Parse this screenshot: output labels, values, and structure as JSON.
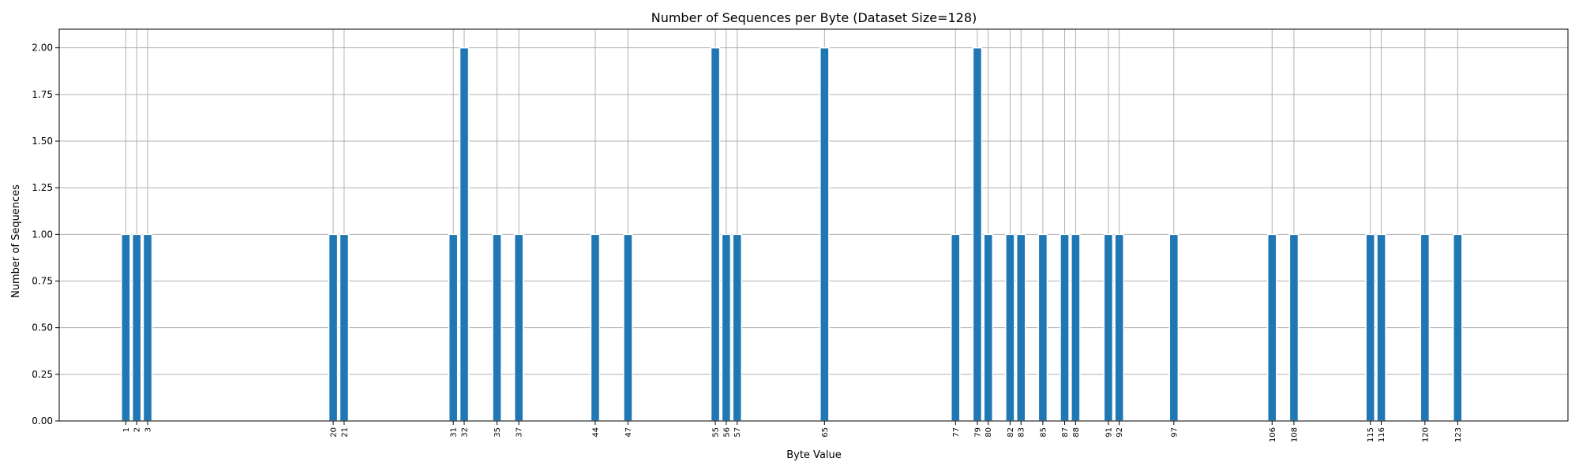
{
  "chart_data": {
    "type": "bar",
    "title": "Number of Sequences per Byte (Dataset Size=128)",
    "xlabel": "Byte Value",
    "ylabel": "Number of Sequences",
    "x": [
      1,
      2,
      3,
      20,
      21,
      31,
      32,
      35,
      37,
      44,
      47,
      55,
      56,
      57,
      65,
      77,
      79,
      80,
      82,
      83,
      85,
      87,
      88,
      91,
      92,
      97,
      106,
      108,
      115,
      116,
      120,
      123
    ],
    "values": [
      1,
      1,
      1,
      1,
      1,
      1,
      2,
      1,
      1,
      1,
      1,
      2,
      1,
      1,
      2,
      1,
      2,
      1,
      1,
      1,
      1,
      1,
      1,
      1,
      1,
      1,
      1,
      1,
      1,
      1,
      1,
      1
    ],
    "ylim": [
      0,
      2.1
    ],
    "xlim": [
      -5.1,
      133.1
    ],
    "yticks": [
      "0.00",
      "0.25",
      "0.50",
      "0.75",
      "1.00",
      "1.25",
      "1.50",
      "1.75",
      "2.00"
    ],
    "grid": true,
    "bar_color": "#1f77b4",
    "bar_edge_color": "#ffffff"
  }
}
